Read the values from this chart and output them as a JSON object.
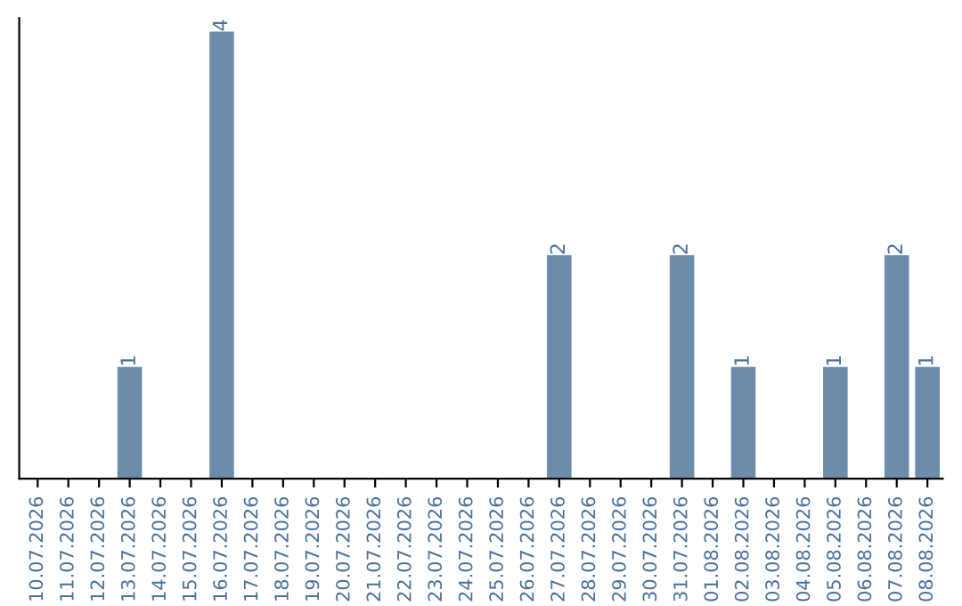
{
  "chart_data": {
    "type": "bar",
    "categories": [
      "10.07.2026",
      "11.07.2026",
      "12.07.2026",
      "13.07.2026",
      "14.07.2026",
      "15.07.2026",
      "16.07.2026",
      "17.07.2026",
      "18.07.2026",
      "19.07.2026",
      "20.07.2026",
      "21.07.2026",
      "22.07.2026",
      "23.07.2026",
      "24.07.2026",
      "25.07.2026",
      "26.07.2026",
      "27.07.2026",
      "28.07.2026",
      "29.07.2026",
      "30.07.2026",
      "31.07.2026",
      "01.08.2026",
      "02.08.2026",
      "03.08.2026",
      "04.08.2026",
      "05.08.2026",
      "06.08.2026",
      "07.08.2026",
      "08.08.2026"
    ],
    "values": [
      0,
      0,
      0,
      1,
      0,
      0,
      4,
      0,
      0,
      0,
      0,
      0,
      0,
      0,
      0,
      0,
      0,
      2,
      0,
      0,
      0,
      2,
      0,
      1,
      0,
      0,
      1,
      0,
      2,
      1
    ],
    "value_labels": [
      null,
      null,
      null,
      "1",
      null,
      null,
      "4",
      null,
      null,
      null,
      null,
      null,
      null,
      null,
      null,
      null,
      null,
      "2",
      null,
      null,
      null,
      "2",
      null,
      "1",
      null,
      null,
      "1",
      null,
      "2",
      "1"
    ],
    "color": "#6b8cab",
    "tick_labels": "x",
    "grid": false,
    "legend": false
  }
}
